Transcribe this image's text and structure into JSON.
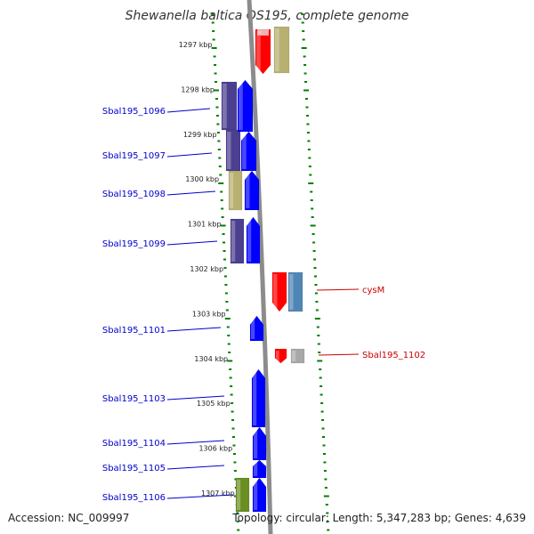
{
  "title": "Shewanella baltica OS195, complete genome",
  "footer": {
    "accession": "Accession: NC_009997",
    "stats": "Topology: circular; Length: 5,347,283 bp; Genes: 4,639"
  },
  "colors": {
    "tick": "#008000",
    "backbone": "#8c8c8c",
    "left_label": "#0000cc",
    "right_label": "#cc0000",
    "forward_gene": "#0000ff",
    "reverse_gene": "#ff0000",
    "cog_purple": "#4b3f8f",
    "cog_khaki": "#b8b070",
    "cog_olive": "#6b8e23",
    "cog_steel": "#4f86b5",
    "cog_grey": "#a8a8a8",
    "cog_pink": "#f4b0b0"
  },
  "scale_labels": [
    "1297 kbp",
    "1298 kbp",
    "1299 kbp",
    "1300 kbp",
    "1301 kbp",
    "1302 kbp",
    "1303 kbp",
    "1304 kbp",
    "1305 kbp",
    "1306 kbp",
    "1307 kbp"
  ],
  "left_gene_labels": [
    "Sbal195_1096",
    "Sbal195_1097",
    "Sbal195_1098",
    "Sbal195_1099",
    "Sbal195_1101",
    "Sbal195_1103",
    "Sbal195_1104",
    "Sbal195_1105",
    "Sbal195_1106"
  ],
  "right_gene_labels": [
    "cysM",
    "Sbal195_1102"
  ]
}
